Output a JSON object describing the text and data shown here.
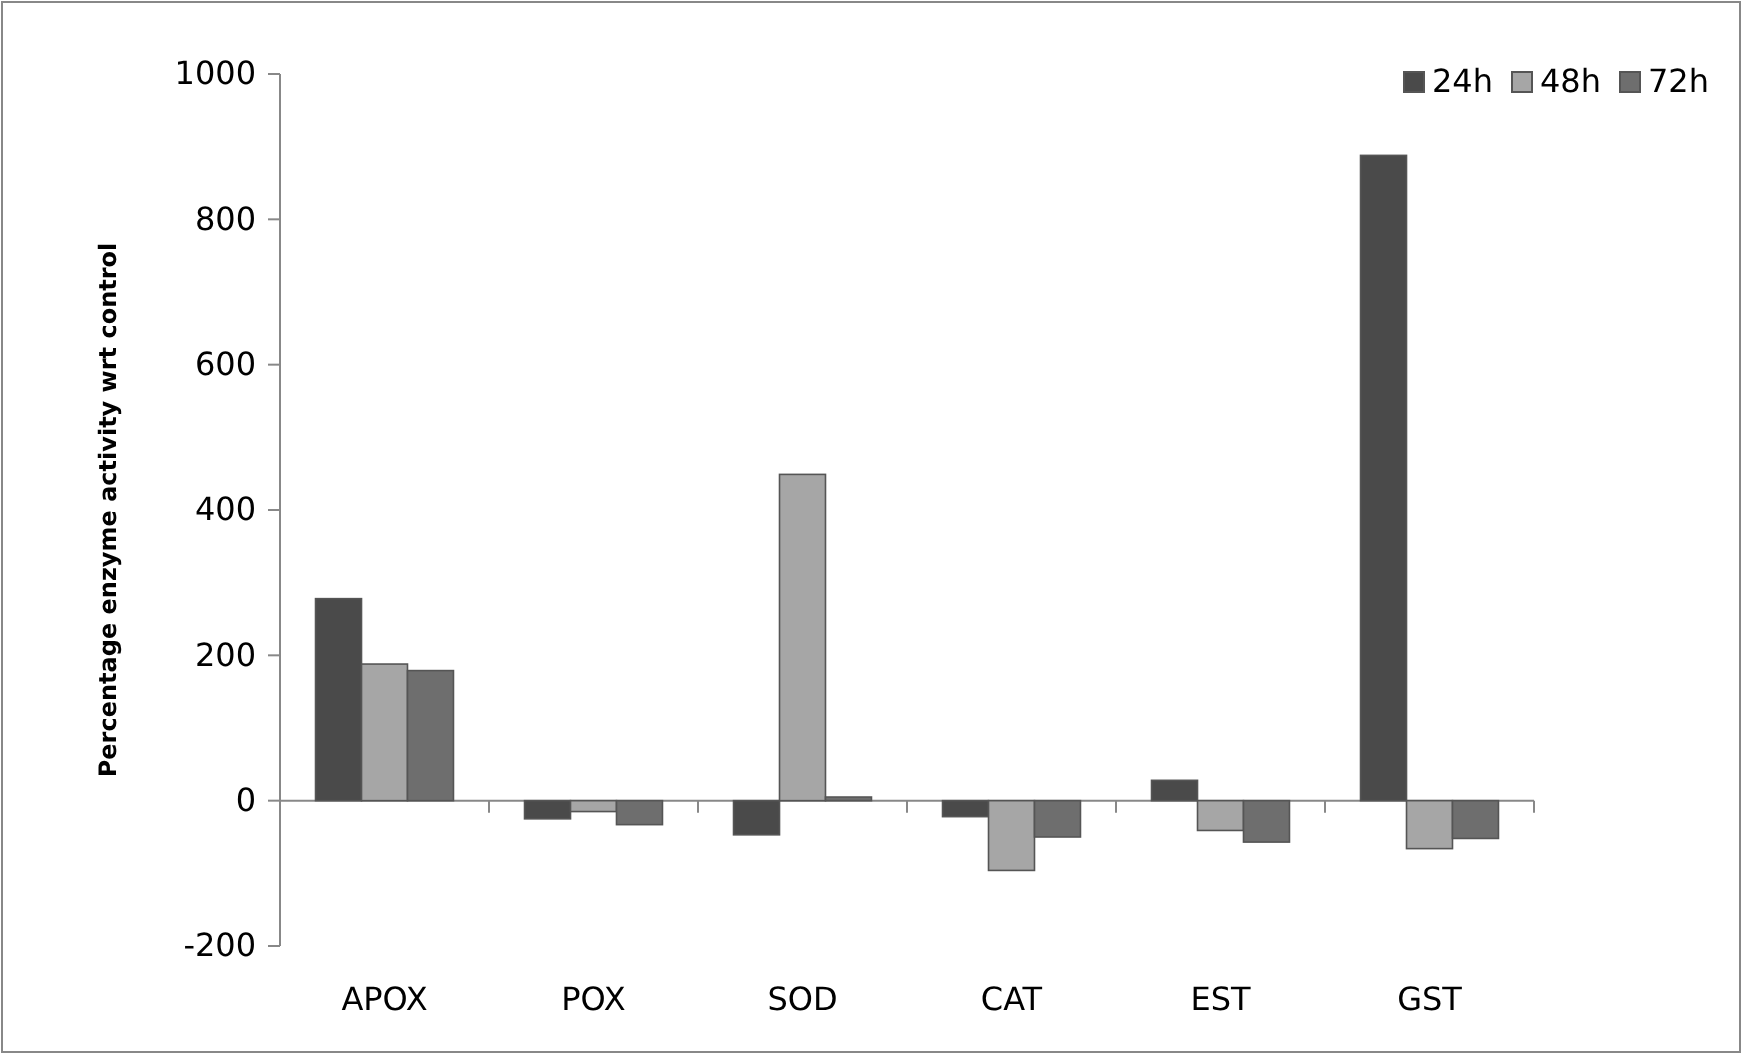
{
  "chart_data": {
    "type": "bar",
    "ylabel": "Percentage enzyme activity wrt control",
    "categories": [
      "APOX",
      "POX",
      "SOD",
      "CAT",
      "EST",
      "GST"
    ],
    "series": [
      {
        "name": "24h",
        "color": "#4a4a4a",
        "values": [
          278,
          -25,
          -47,
          -22,
          28,
          888
        ]
      },
      {
        "name": "48h",
        "color": "#a6a6a6",
        "values": [
          188,
          -15,
          449,
          -96,
          -41,
          -66
        ]
      },
      {
        "name": "72h",
        "color": "#6e6e6e",
        "values": [
          179,
          -33,
          5,
          -50,
          -57,
          -52
        ]
      }
    ],
    "ylim": [
      -200,
      1000
    ],
    "yticks": [
      -200,
      0,
      200,
      400,
      600,
      800,
      1000
    ],
    "legend": "top right"
  }
}
